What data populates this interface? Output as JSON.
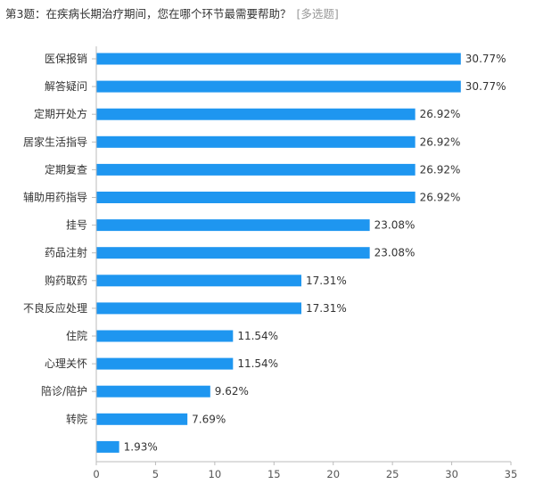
{
  "question": {
    "title": "第3题：在疾病长期治疗期间，您在哪个环节最需要帮助？",
    "type_tag": "[多选题]"
  },
  "chart_data": {
    "type": "bar",
    "orientation": "horizontal",
    "categories": [
      "医保报销",
      "解答疑问",
      "定期开处方",
      "居家生活指导",
      "定期复查",
      "辅助用药指导",
      "挂号",
      "药品注射",
      "购药取药",
      "不良反应处理",
      "住院",
      "心理关怀",
      "陪诊/陪护",
      "转院",
      ""
    ],
    "values": [
      30.77,
      30.77,
      26.92,
      26.92,
      26.92,
      26.92,
      23.08,
      23.08,
      17.31,
      17.31,
      11.54,
      11.54,
      9.62,
      7.69,
      1.93
    ],
    "value_labels": [
      "30.77%",
      "30.77%",
      "26.92%",
      "26.92%",
      "26.92%",
      "26.92%",
      "23.08%",
      "23.08%",
      "17.31%",
      "17.31%",
      "11.54%",
      "11.54%",
      "9.62%",
      "7.69%",
      "1.93%"
    ],
    "xticks": [
      0,
      5,
      10,
      15,
      20,
      25,
      30,
      35
    ],
    "xlim": [
      0,
      35
    ],
    "grid": false,
    "bar_color": "#1e96f0",
    "title": "",
    "xlabel": "",
    "ylabel": ""
  }
}
